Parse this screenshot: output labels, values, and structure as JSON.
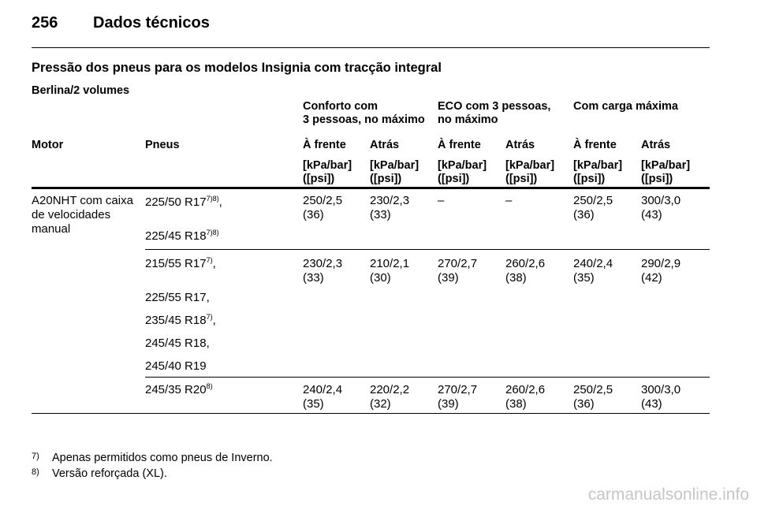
{
  "page_header": {
    "number": "256",
    "title": "Dados técnicos"
  },
  "section_title": "Pressão dos pneus para os modelos Insignia com tracção integral",
  "subsection": "Berlina/2 volumes",
  "load_groups": [
    {
      "line1": "Conforto com",
      "line2": "3 pessoas, no máximo"
    },
    {
      "line1": "ECO com 3 pessoas,",
      "line2": "no máximo"
    },
    {
      "line1": "Com carga máxima",
      "line2": ""
    }
  ],
  "columns": {
    "motor": "Motor",
    "tyres": "Pneus",
    "front": "À frente",
    "rear": "Atrás",
    "unit_line1": "[kPa/bar]",
    "unit_line2": "([psi])"
  },
  "engine": "A20NHT com caixa de velocidades manual",
  "groups": [
    {
      "tyres": [
        {
          "size": "225/50 R17",
          "note": "7)8)",
          "suffix": ","
        },
        {
          "size": "225/45 R18",
          "note": "7)8)",
          "suffix": ""
        }
      ],
      "values": [
        {
          "kpa": "250/2,5",
          "psi": "(36)"
        },
        {
          "kpa": "230/2,3",
          "psi": "(33)"
        },
        {
          "kpa": "–",
          "psi": ""
        },
        {
          "kpa": "–",
          "psi": ""
        },
        {
          "kpa": "250/2,5",
          "psi": "(36)"
        },
        {
          "kpa": "300/3,0",
          "psi": "(43)"
        }
      ]
    },
    {
      "tyres": [
        {
          "size": "215/55 R17",
          "note": "7)",
          "suffix": ","
        },
        {
          "size": "225/55 R17,",
          "note": "",
          "suffix": ""
        },
        {
          "size": "235/45 R18",
          "note": "7)",
          "suffix": ","
        },
        {
          "size": "245/45 R18,",
          "note": "",
          "suffix": ""
        },
        {
          "size": "245/40 R19",
          "note": "",
          "suffix": ""
        }
      ],
      "values": [
        {
          "kpa": "230/2,3",
          "psi": "(33)"
        },
        {
          "kpa": "210/2,1",
          "psi": "(30)"
        },
        {
          "kpa": "270/2,7",
          "psi": "(39)"
        },
        {
          "kpa": "260/2,6",
          "psi": "(38)"
        },
        {
          "kpa": "240/2,4",
          "psi": "(35)"
        },
        {
          "kpa": "290/2,9",
          "psi": "(42)"
        }
      ]
    },
    {
      "tyres": [
        {
          "size": "245/35 R20",
          "note": "8)",
          "suffix": ""
        }
      ],
      "values": [
        {
          "kpa": "240/2,4",
          "psi": "(35)"
        },
        {
          "kpa": "220/2,2",
          "psi": "(32)"
        },
        {
          "kpa": "270/2,7",
          "psi": "(39)"
        },
        {
          "kpa": "260/2,6",
          "psi": "(38)"
        },
        {
          "kpa": "250/2,5",
          "psi": "(36)"
        },
        {
          "kpa": "300/3,0",
          "psi": "(43)"
        }
      ]
    }
  ],
  "footnotes": [
    {
      "mark": "7)",
      "text": "Apenas permitidos como pneus de Inverno."
    },
    {
      "mark": "8)",
      "text": "Versão reforçada (XL)."
    }
  ],
  "watermark": "carmanualsonline.info"
}
